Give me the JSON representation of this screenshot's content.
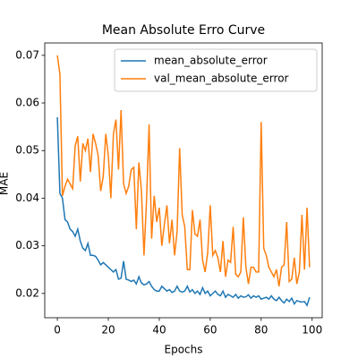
{
  "chart_data": {
    "type": "line",
    "title": "Mean Absolute Erro Curve",
    "xlabel": "Epochs",
    "ylabel": "MAE",
    "x": [
      0,
      1,
      2,
      3,
      4,
      5,
      6,
      7,
      8,
      9,
      10,
      11,
      12,
      13,
      14,
      15,
      16,
      17,
      18,
      19,
      20,
      21,
      22,
      23,
      24,
      25,
      26,
      27,
      28,
      29,
      30,
      31,
      32,
      33,
      34,
      35,
      36,
      37,
      38,
      39,
      40,
      41,
      42,
      43,
      44,
      45,
      46,
      47,
      48,
      49,
      50,
      51,
      52,
      53,
      54,
      55,
      56,
      57,
      58,
      59,
      60,
      61,
      62,
      63,
      64,
      65,
      66,
      67,
      68,
      69,
      70,
      71,
      72,
      73,
      74,
      75,
      76,
      77,
      78,
      79,
      80,
      81,
      82,
      83,
      84,
      85,
      86,
      87,
      88,
      89,
      90,
      91,
      92,
      93,
      94,
      95,
      96,
      97,
      98,
      99
    ],
    "series": [
      {
        "name": "mean_absolute_error",
        "color": "#1f77b4",
        "values": [
          0.057,
          0.041,
          0.04,
          0.0355,
          0.035,
          0.0335,
          0.033,
          0.032,
          0.0335,
          0.031,
          0.0295,
          0.029,
          0.0305,
          0.028,
          0.028,
          0.0278,
          0.027,
          0.026,
          0.0265,
          0.026,
          0.0255,
          0.025,
          0.0245,
          0.025,
          0.023,
          0.0232,
          0.0268,
          0.023,
          0.0228,
          0.0225,
          0.0228,
          0.022,
          0.0235,
          0.0222,
          0.0218,
          0.022,
          0.0225,
          0.0215,
          0.0208,
          0.0205,
          0.0205,
          0.0215,
          0.021,
          0.0205,
          0.0208,
          0.0202,
          0.0205,
          0.0215,
          0.0205,
          0.0203,
          0.0205,
          0.0215,
          0.0203,
          0.0208,
          0.02,
          0.0205,
          0.0198,
          0.0212,
          0.02,
          0.0205,
          0.0195,
          0.02,
          0.0205,
          0.0198,
          0.0195,
          0.0205,
          0.0192,
          0.0198,
          0.0195,
          0.0192,
          0.0198,
          0.019,
          0.0195,
          0.0192,
          0.0193,
          0.0197,
          0.019,
          0.0195,
          0.0192,
          0.0195,
          0.0188,
          0.019,
          0.0192,
          0.0188,
          0.0195,
          0.0188,
          0.0185,
          0.0192,
          0.0185,
          0.018,
          0.0188,
          0.0183,
          0.019,
          0.0178,
          0.0185,
          0.0183,
          0.0182,
          0.0183,
          0.0175,
          0.0192
        ]
      },
      {
        "name": "val_mean_absolute_error",
        "color": "#ff7f0e",
        "values": [
          0.07,
          0.066,
          0.0405,
          0.0425,
          0.044,
          0.043,
          0.042,
          0.051,
          0.053,
          0.0435,
          0.0515,
          0.05,
          0.0525,
          0.0455,
          0.0535,
          0.0515,
          0.049,
          0.0415,
          0.0445,
          0.0535,
          0.049,
          0.04,
          0.0535,
          0.0565,
          0.046,
          0.0585,
          0.043,
          0.041,
          0.0425,
          0.046,
          0.0465,
          0.0335,
          0.0475,
          0.0415,
          0.028,
          0.0395,
          0.0555,
          0.0315,
          0.0405,
          0.035,
          0.038,
          0.03,
          0.0345,
          0.0385,
          0.0305,
          0.0355,
          0.028,
          0.033,
          0.0505,
          0.0365,
          0.034,
          0.025,
          0.025,
          0.0375,
          0.0325,
          0.032,
          0.0355,
          0.027,
          0.0245,
          0.0285,
          0.0385,
          0.028,
          0.029,
          0.0275,
          0.0245,
          0.031,
          0.0235,
          0.027,
          0.0265,
          0.034,
          0.024,
          0.0235,
          0.0245,
          0.036,
          0.0255,
          0.022,
          0.0255,
          0.0255,
          0.0245,
          0.0245,
          0.056,
          0.0295,
          0.028,
          0.0255,
          0.0245,
          0.0235,
          0.025,
          0.0215,
          0.0255,
          0.026,
          0.035,
          0.0225,
          0.023,
          0.0275,
          0.022,
          0.0245,
          0.0365,
          0.025,
          0.038,
          0.0255
        ]
      }
    ],
    "xlim": [
      -4.95,
      103.95
    ],
    "xticks": [
      0,
      20,
      40,
      60,
      80,
      100
    ],
    "ylim": [
      0.0149,
      0.0726
    ],
    "yticks": [
      0.02,
      0.03,
      0.04,
      0.05,
      0.06,
      0.07
    ],
    "legend": "upper right"
  }
}
